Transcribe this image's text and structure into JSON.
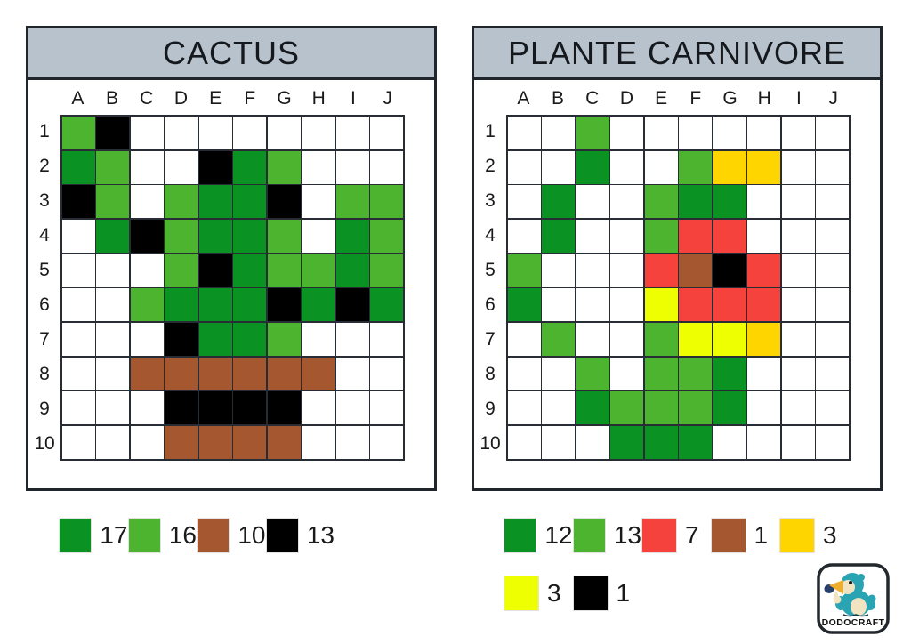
{
  "colors": {
    "white": "#ffffff",
    "dark_green": "#0a9322",
    "light_green": "#4db430",
    "brown": "#a5582f",
    "black": "#000000",
    "red": "#f5423d",
    "gold": "#ffd500",
    "neon_yellow": "#edff00"
  },
  "code_map": {
    "W": "white",
    "D": "dark_green",
    "L": "light_green",
    "B": "brown",
    "K": "black",
    "R": "red",
    "G": "gold",
    "Y": "neon_yellow"
  },
  "panels": [
    {
      "title": "CACTUS",
      "columns": [
        "A",
        "B",
        "C",
        "D",
        "E",
        "F",
        "G",
        "H",
        "I",
        "J"
      ],
      "rows": [
        "1",
        "2",
        "3",
        "4",
        "5",
        "6",
        "7",
        "8",
        "9",
        "10"
      ],
      "cells": [
        "LKWWWWWWWW",
        "DLWWKDLWWW",
        "KLWLDDKWLL",
        "WDKLDDLWDL",
        "WWWLKDLLDL",
        "WWLDDDKDKD",
        "WWWKDDLWWW",
        "WWBBBBBBWW",
        "WWWKKKKWWW",
        "WWWBBBBWWW"
      ],
      "legend_rows": [
        [
          {
            "color": "dark_green",
            "count": "17"
          },
          {
            "color": "light_green",
            "count": "16"
          },
          {
            "color": "brown",
            "count": "10"
          },
          {
            "color": "black",
            "count": "13"
          }
        ]
      ]
    },
    {
      "title": "PLANTE CARNIVORE",
      "columns": [
        "A",
        "B",
        "C",
        "D",
        "E",
        "F",
        "G",
        "H",
        "I",
        "J"
      ],
      "rows": [
        "1",
        "2",
        "3",
        "4",
        "5",
        "6",
        "7",
        "8",
        "9",
        "10"
      ],
      "cells": [
        "WWLWWWWWWW",
        "WWDWWLGGWW",
        "WDWWLDDWWW",
        "WDWWLRRWWW",
        "LWWWRBKRWW",
        "DWWWYRRRWW",
        "WLWWLYYGWW",
        "WWLWLLDWWW",
        "WWDLLLDWWW",
        "WWWDDDWWWW"
      ],
      "legend_rows": [
        [
          {
            "color": "dark_green",
            "count": "12"
          },
          {
            "color": "light_green",
            "count": "13"
          },
          {
            "color": "red",
            "count": "7"
          },
          {
            "color": "brown",
            "count": "1"
          },
          {
            "color": "gold",
            "count": "3"
          }
        ],
        [
          {
            "color": "neon_yellow",
            "count": "3"
          },
          {
            "color": "black",
            "count": "1"
          }
        ]
      ]
    }
  ],
  "logo": {
    "text": "DODOCRAFT"
  }
}
